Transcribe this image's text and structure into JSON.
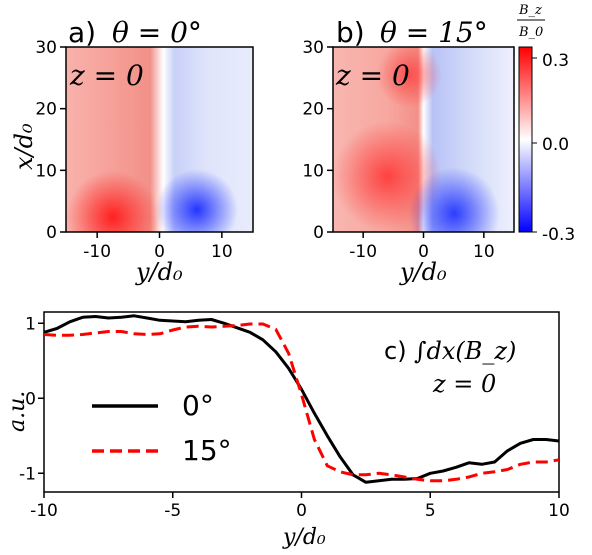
{
  "chart_data": [
    {
      "type": "heatmap",
      "panel_label": "a)",
      "title": "θ = 0°",
      "annotation": "z = 0",
      "xlabel": "y/d₀",
      "ylabel": "x/d₀",
      "xlim": [
        -15,
        15
      ],
      "ylim": [
        0,
        30
      ],
      "xticks": [
        "-10",
        "0",
        "10"
      ],
      "yticks": [
        "0",
        "10",
        "20",
        "30"
      ],
      "sign_boundary_y": 0.5,
      "description_values": {
        "left_region": 0.15,
        "right_region": -0.15,
        "peak_pos": 0.25,
        "peak_neg": -0.25
      }
    },
    {
      "type": "heatmap",
      "panel_label": "b)",
      "title": "θ = 15°",
      "annotation": "z = 0",
      "xlabel": "y/d₀",
      "ylabel": "x/d₀",
      "xlim": [
        -15,
        15
      ],
      "ylim": [
        0,
        30
      ],
      "xticks": [
        "-10",
        "0",
        "10"
      ],
      "yticks": [
        "0",
        "10",
        "20",
        "30"
      ],
      "sign_boundary_y": 0,
      "colorbar": {
        "label_num": "B_z",
        "label_den": "B_0",
        "ticks": [
          "0.3",
          "0.0",
          "-0.3"
        ],
        "range": [
          -0.3,
          0.3
        ],
        "colors": [
          "#0000ff",
          "#ffffff",
          "#ff0000"
        ]
      }
    },
    {
      "type": "line",
      "panel_label": "c)",
      "annotation_line1": "∫dx(B_z)",
      "annotation_line2": "z = 0",
      "xlabel": "y/d₀",
      "ylabel": "a.u.",
      "xlim": [
        -10,
        10
      ],
      "ylim": [
        -1.25,
        1.15
      ],
      "xticks": [
        -10,
        -5,
        0,
        5,
        10
      ],
      "xtick_labels": [
        "-10",
        "-5",
        "0",
        "5",
        "10"
      ],
      "yticks": [
        -1,
        0,
        1
      ],
      "ytick_labels": [
        "-1",
        "0",
        "1"
      ],
      "series": [
        {
          "name": "0°",
          "color": "#000000",
          "style": "solid",
          "x": [
            -10,
            -9.5,
            -9,
            -8.5,
            -8,
            -7.5,
            -7,
            -6.5,
            -6,
            -5.5,
            -5,
            -4.5,
            -4,
            -3.5,
            -3,
            -2.5,
            -2,
            -1.5,
            -1,
            -0.5,
            0,
            0.5,
            1,
            1.5,
            2,
            2.5,
            3,
            3.5,
            4,
            4.5,
            5,
            5.5,
            6,
            6.5,
            7,
            7.5,
            8,
            8.5,
            9,
            9.5,
            10
          ],
          "y": [
            0.88,
            0.93,
            1.02,
            1.08,
            1.09,
            1.07,
            1.08,
            1.1,
            1.07,
            1.04,
            1.03,
            1.02,
            1.04,
            1.05,
            1.0,
            0.94,
            0.88,
            0.78,
            0.62,
            0.4,
            0.12,
            -0.2,
            -0.5,
            -0.78,
            -1.02,
            -1.12,
            -1.1,
            -1.08,
            -1.08,
            -1.07,
            -1.0,
            -0.97,
            -0.92,
            -0.86,
            -0.88,
            -0.85,
            -0.7,
            -0.6,
            -0.55,
            -0.55,
            -0.57
          ]
        },
        {
          "name": "15°",
          "color": "#ff0000",
          "style": "dashed",
          "x": [
            -10,
            -9.5,
            -9,
            -8.5,
            -8,
            -7.5,
            -7,
            -6.5,
            -6,
            -5.5,
            -5,
            -4.5,
            -4,
            -3.5,
            -3,
            -2.5,
            -2,
            -1.5,
            -1,
            -0.5,
            0,
            0.5,
            1,
            1.5,
            2,
            2.5,
            3,
            3.5,
            4,
            4.5,
            5,
            5.5,
            6,
            6.5,
            7,
            7.5,
            8,
            8.5,
            9,
            9.5,
            10
          ],
          "y": [
            0.85,
            0.84,
            0.84,
            0.85,
            0.87,
            0.89,
            0.89,
            0.86,
            0.85,
            0.86,
            0.91,
            0.95,
            0.96,
            0.95,
            0.96,
            0.97,
            0.99,
            0.99,
            0.92,
            0.6,
            0.05,
            -0.55,
            -0.9,
            -0.98,
            -1.02,
            -1.02,
            -1.0,
            -1.02,
            -1.05,
            -1.08,
            -1.1,
            -1.1,
            -1.08,
            -1.05,
            -1.0,
            -0.98,
            -0.95,
            -0.88,
            -0.85,
            -0.85,
            -0.82
          ]
        }
      ],
      "legend": "center-left"
    }
  ]
}
